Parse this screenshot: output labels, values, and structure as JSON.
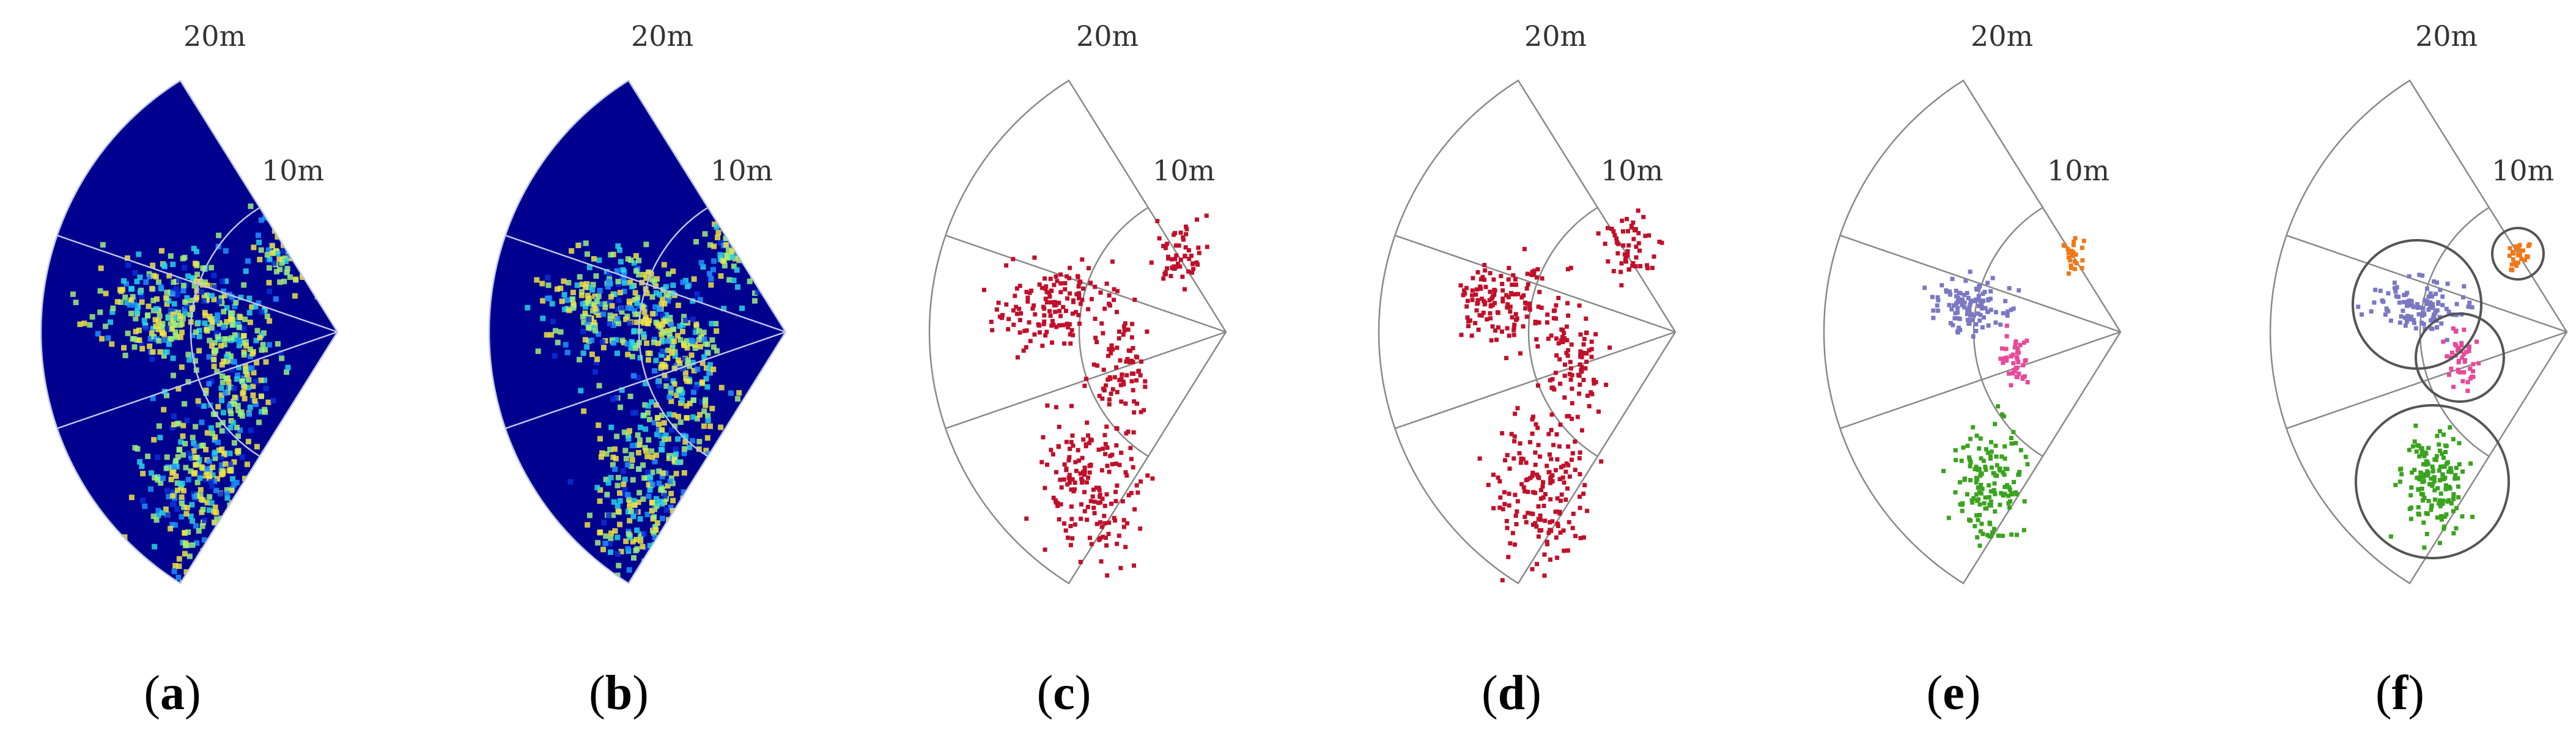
{
  "panels": [
    {
      "id": "a",
      "style": "heatmap",
      "range_labels": [
        "20m",
        "10m"
      ],
      "caption": {
        "open": "(",
        "letter": "a",
        "close": ")"
      }
    },
    {
      "id": "b",
      "style": "heatmap",
      "range_labels": [
        "20m",
        "10m"
      ],
      "caption": {
        "open": "(",
        "letter": "b",
        "close": ")"
      }
    },
    {
      "id": "c",
      "style": "points",
      "range_labels": [
        "20m",
        "10m"
      ],
      "caption": {
        "open": "(",
        "letter": "c",
        "close": ")"
      }
    },
    {
      "id": "d",
      "style": "points",
      "range_labels": [
        "20m",
        "10m"
      ],
      "caption": {
        "open": "(",
        "letter": "d",
        "close": ")"
      }
    },
    {
      "id": "e",
      "style": "clusters",
      "range_labels": [
        "20m",
        "10m"
      ],
      "caption": {
        "open": "(",
        "letter": "e",
        "close": ")"
      }
    },
    {
      "id": "f",
      "style": "clusters-circled",
      "range_labels": [
        "20m",
        "10m"
      ],
      "caption": {
        "open": "(",
        "letter": "f",
        "close": ")"
      }
    }
  ],
  "colors": {
    "heatmap_background": "#00008f",
    "heatmap_hot": [
      "#0a2fd6",
      "#1e90ff",
      "#27d3e6",
      "#9ef07a",
      "#f0e442",
      "#ff8c1a"
    ],
    "points": "#c0102a",
    "cluster_1": "#7b78c2",
    "cluster_2": "#f07818",
    "cluster_3": "#e8489a",
    "cluster_4": "#3aa31f",
    "grid": "#888888",
    "circle": "#555555"
  }
}
